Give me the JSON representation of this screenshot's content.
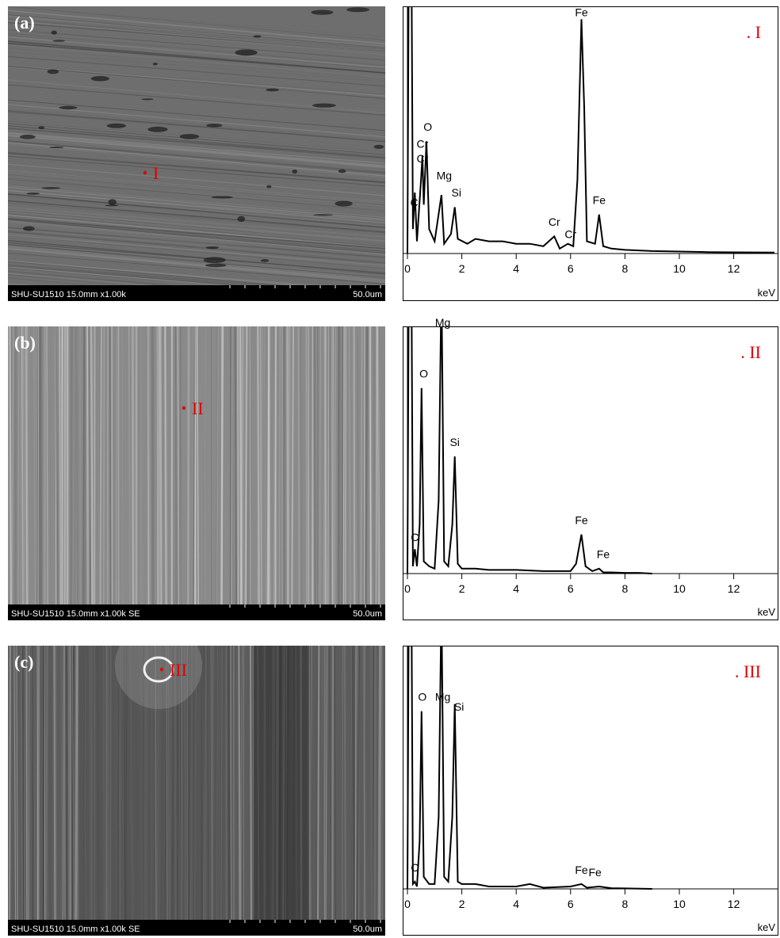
{
  "panels": [
    {
      "label": "(a)",
      "site": "I",
      "sem_info": "SHU-SU1510 15.0mm x1.00k",
      "scale": "50.0um"
    },
    {
      "label": "(b)",
      "site": "II",
      "sem_info": "SHU-SU1510 15.0mm x1.00k SE",
      "scale": "50.0um"
    },
    {
      "label": "(c)",
      "site": "III",
      "sem_info": "SHU-SU1510 15.0mm x1.00k SE",
      "scale": "50.0um"
    }
  ],
  "chart_data": [
    {
      "type": "line",
      "title": ". I",
      "title_color": "#e00000",
      "x_label": "keV",
      "color": "#000000",
      "x": [
        0,
        0.05,
        0.15,
        0.2,
        0.27,
        0.35,
        0.5,
        0.55,
        0.6,
        0.7,
        0.8,
        1.0,
        1.25,
        1.35,
        1.6,
        1.74,
        1.85,
        2.2,
        2.5,
        3,
        3.5,
        4,
        4.5,
        5,
        5.4,
        5.6,
        5.9,
        6.1,
        6.25,
        6.4,
        6.5,
        6.6,
        6.9,
        7.05,
        7.2,
        7.5,
        8,
        9,
        10,
        11,
        12,
        13.5
      ],
      "values": [
        0,
        120,
        120,
        10,
        25,
        5,
        30,
        40,
        20,
        46,
        10,
        5,
        24,
        4,
        8,
        19,
        6,
        4,
        6,
        5,
        5,
        4,
        4,
        3,
        7,
        2,
        4,
        3,
        30,
        96,
        60,
        5,
        4,
        16,
        3,
        2,
        1.5,
        1,
        0.8,
        0.6,
        0.5,
        0.4
      ],
      "xlim": [
        0,
        13.6
      ],
      "ylim": [
        0,
        100
      ],
      "xticks": [
        0,
        2,
        4,
        6,
        8,
        10,
        12
      ],
      "annotations": [
        {
          "text": "C",
          "x": 0.25,
          "y": 18
        },
        {
          "text": "Cr",
          "x": 0.55,
          "y": 42
        },
        {
          "text": "Cr",
          "x": 0.55,
          "y": 36
        },
        {
          "text": "O",
          "x": 0.75,
          "y": 49
        },
        {
          "text": "Mg",
          "x": 1.35,
          "y": 29
        },
        {
          "text": "Si",
          "x": 1.8,
          "y": 22
        },
        {
          "text": "Cr",
          "x": 5.4,
          "y": 10
        },
        {
          "text": "Cr",
          "x": 6.0,
          "y": 5
        },
        {
          "text": "Fe",
          "x": 6.4,
          "y": 96
        },
        {
          "text": "Fe",
          "x": 7.05,
          "y": 19
        }
      ]
    },
    {
      "type": "line",
      "title": ". II",
      "title_color": "#e00000",
      "x_label": "keV",
      "color": "#000000",
      "x": [
        0,
        0.05,
        0.15,
        0.2,
        0.27,
        0.35,
        0.45,
        0.52,
        0.6,
        0.8,
        1.0,
        1.15,
        1.25,
        1.35,
        1.5,
        1.65,
        1.74,
        1.85,
        2,
        2.5,
        3,
        4,
        5,
        6,
        6.2,
        6.4,
        6.55,
        6.8,
        7.05,
        7.2,
        7.5,
        8,
        8.5,
        9
      ],
      "values": [
        0,
        120,
        120,
        3,
        10,
        3,
        20,
        76,
        5,
        3,
        2,
        30,
        120,
        5,
        3,
        20,
        48,
        4,
        2,
        2,
        1.5,
        1.5,
        1,
        1,
        4,
        16,
        3,
        1,
        2,
        0.5,
        0.5,
        0.3,
        0.3,
        0
      ],
      "xlim": [
        0,
        13.6
      ],
      "ylim": [
        0,
        100
      ],
      "xticks": [
        0,
        2,
        4,
        6,
        8,
        10,
        12
      ],
      "annotations": [
        {
          "text": "C",
          "x": 0.27,
          "y": 12
        },
        {
          "text": "O",
          "x": 0.6,
          "y": 79
        },
        {
          "text": "Mg",
          "x": 1.3,
          "y": 100
        },
        {
          "text": "Si",
          "x": 1.74,
          "y": 51
        },
        {
          "text": "Fe",
          "x": 6.4,
          "y": 19
        },
        {
          "text": "Fe",
          "x": 7.2,
          "y": 5
        }
      ]
    },
    {
      "type": "line",
      "title": ". III",
      "title_color": "#e00000",
      "x_label": "keV",
      "color": "#000000",
      "x": [
        0,
        0.05,
        0.15,
        0.2,
        0.27,
        0.35,
        0.45,
        0.52,
        0.6,
        0.8,
        1.0,
        1.15,
        1.25,
        1.35,
        1.5,
        1.65,
        1.74,
        1.85,
        2,
        2.5,
        3,
        4,
        4.5,
        5,
        6,
        6.4,
        6.6,
        7.05,
        7.5,
        8,
        9
      ],
      "values": [
        0,
        120,
        120,
        2,
        3,
        1,
        20,
        74,
        5,
        2,
        2,
        30,
        120,
        5,
        3,
        30,
        77,
        3,
        2,
        2,
        1,
        1,
        2,
        0.5,
        1,
        2,
        0.5,
        1,
        0.3,
        0.2,
        0
      ],
      "xlim": [
        0,
        13.6
      ],
      "ylim": [
        0,
        100
      ],
      "xticks": [
        0,
        2,
        4,
        6,
        8,
        10,
        12
      ],
      "annotations": [
        {
          "text": "C",
          "x": 0.27,
          "y": 6
        },
        {
          "text": "O",
          "x": 0.55,
          "y": 77
        },
        {
          "text": "Mg",
          "x": 1.3,
          "y": 77
        },
        {
          "text": "Si",
          "x": 1.9,
          "y": 73
        },
        {
          "text": "Fe",
          "x": 6.4,
          "y": 5
        },
        {
          "text": "Fe",
          "x": 6.9,
          "y": 4
        }
      ]
    }
  ]
}
